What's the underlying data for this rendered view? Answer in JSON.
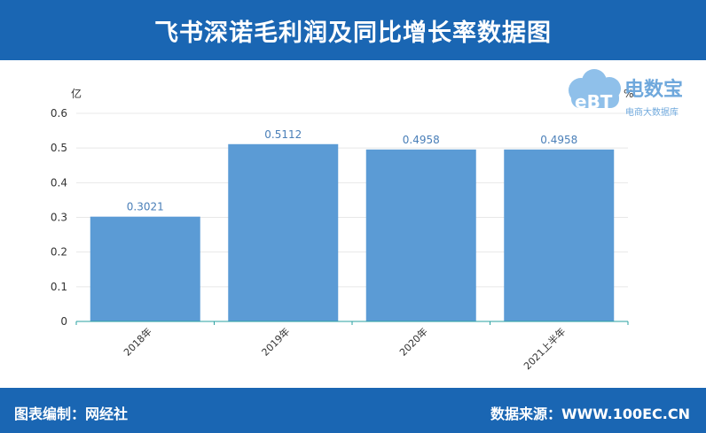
{
  "header": {
    "title": "飞书深诺毛利润及同比增长率数据图"
  },
  "footer": {
    "editor": "图表编制：网经社",
    "source": "数据来源：WWW.100EC.CN"
  },
  "logo": {
    "name": "电数宝",
    "subtitle": "电商大数据库",
    "mark": "eBT"
  },
  "chart_data": {
    "type": "bar",
    "categories": [
      "2018年",
      "2019年",
      "2020年",
      "2021上半年"
    ],
    "series": [
      {
        "values": [
          0.3021,
          0.5112,
          0.4958,
          0.4958
        ]
      }
    ],
    "data_labels": [
      "0.3021",
      "0.5112",
      "0.4958",
      "0.4958"
    ],
    "ylabel": "亿",
    "y2label": "%",
    "ylim": [
      0,
      0.6
    ],
    "yticks": [
      "0",
      "0.1",
      "0.2",
      "0.3",
      "0.4",
      "0.5",
      "0.6"
    ],
    "grid": true,
    "bar_color": "#5b9bd5",
    "axis_color": "#2aa0a0"
  }
}
